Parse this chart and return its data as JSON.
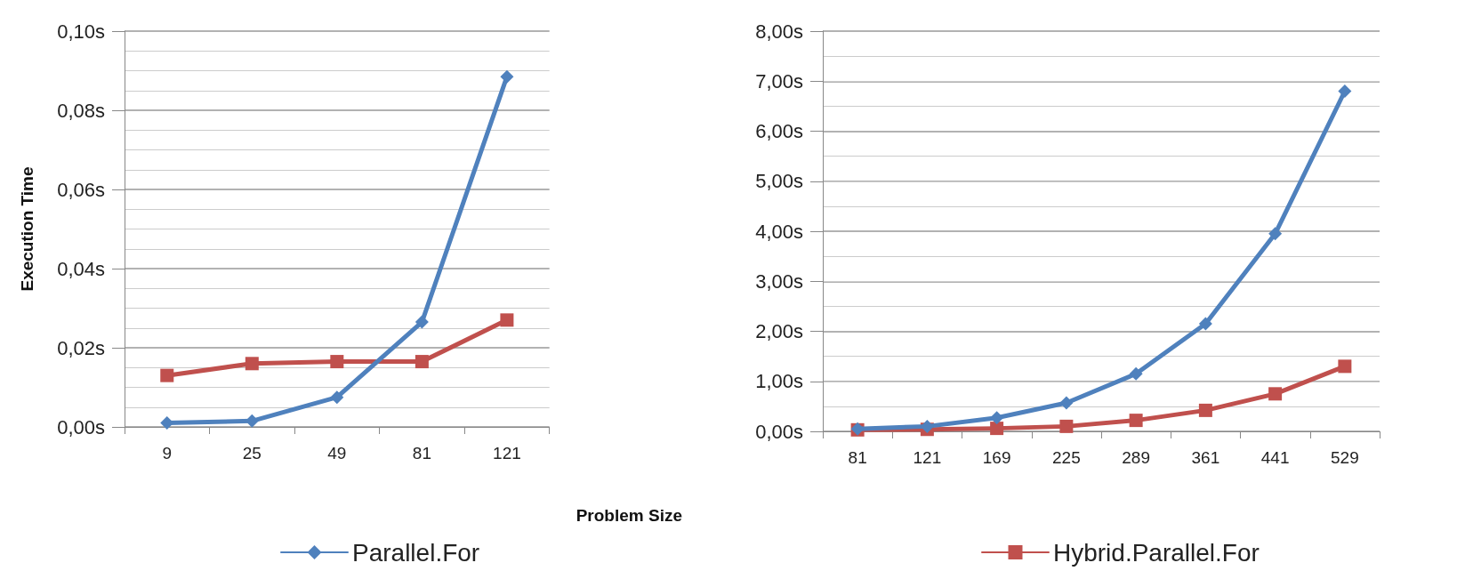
{
  "chart_data": [
    {
      "type": "line",
      "ylabel": "Execution Time",
      "xlabel": "Problem Size",
      "categories": [
        "9",
        "25",
        "49",
        "81",
        "121"
      ],
      "series": [
        {
          "name": "Parallel.For",
          "color": "#4f81bd",
          "marker": "diamond",
          "values": [
            0.001,
            0.0015,
            0.0075,
            0.0265,
            0.0885
          ]
        },
        {
          "color": "#c0504d",
          "marker": "square",
          "values": [
            0.013,
            0.016,
            0.0165,
            0.0165,
            0.027
          ]
        }
      ],
      "ylim": [
        0,
        0.1
      ],
      "yticks": [
        {
          "value": 0,
          "label": "0,00s"
        },
        {
          "value": 0.02,
          "label": "0,02s"
        },
        {
          "value": 0.04,
          "label": "0,04s"
        },
        {
          "value": 0.06,
          "label": "0,06s"
        },
        {
          "value": 0.08,
          "label": "0,08s"
        },
        {
          "value": 0.1,
          "label": "0,10s"
        }
      ],
      "grid": "y",
      "legend": "bottom",
      "line_style": "solid"
    },
    {
      "type": "line",
      "categories": [
        "81",
        "121",
        "169",
        "225",
        "289",
        "361",
        "441",
        "529"
      ],
      "series": [
        {
          "color": "#4f81bd",
          "marker": "diamond",
          "values": [
            0.05,
            0.1,
            0.27,
            0.57,
            1.15,
            2.15,
            3.95,
            6.8
          ]
        },
        {
          "name": "Hybrid.Parallel.For",
          "color": "#c0504d",
          "marker": "square",
          "values": [
            0.03,
            0.04,
            0.06,
            0.1,
            0.22,
            0.42,
            0.75,
            1.3
          ]
        }
      ],
      "ylim": [
        0,
        8
      ],
      "yticks": [
        {
          "value": 0,
          "label": "0,00s"
        },
        {
          "value": 1,
          "label": "1,00s"
        },
        {
          "value": 2,
          "label": "2,00s"
        },
        {
          "value": 3,
          "label": "3,00s"
        },
        {
          "value": 4,
          "label": "4,00s"
        },
        {
          "value": 5,
          "label": "5,00s"
        },
        {
          "value": 6,
          "label": "6,00s"
        },
        {
          "value": 7,
          "label": "7,00s"
        },
        {
          "value": 8,
          "label": "8,00s"
        }
      ],
      "grid": "y",
      "legend": "bottom",
      "line_style": "solid"
    }
  ]
}
